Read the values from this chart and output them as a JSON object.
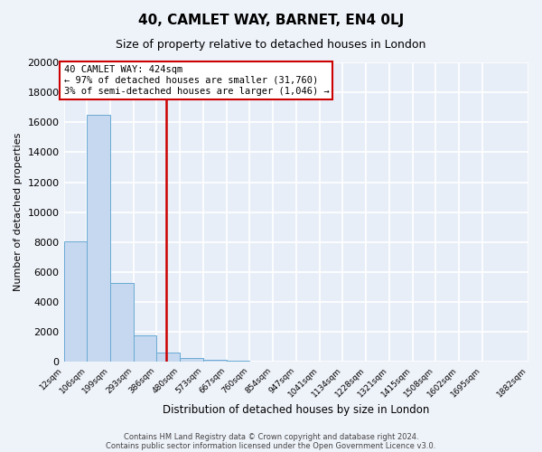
{
  "title": "40, CAMLET WAY, BARNET, EN4 0LJ",
  "subtitle": "Size of property relative to detached houses in London",
  "xlabel": "Distribution of detached houses by size in London",
  "ylabel": "Number of detached properties",
  "bar_values": [
    8050,
    16500,
    5250,
    1750,
    650,
    280,
    150,
    100,
    0,
    0,
    0,
    0,
    0,
    0,
    0,
    0,
    0,
    0,
    0
  ],
  "bin_edges": [
    12,
    106,
    199,
    293,
    386,
    480,
    573,
    667,
    760,
    854,
    947,
    1041,
    1134,
    1228,
    1321,
    1415,
    1508,
    1602,
    1695,
    1882
  ],
  "xtick_labels": [
    "12sqm",
    "106sqm",
    "199sqm",
    "293sqm",
    "386sqm",
    "480sqm",
    "573sqm",
    "667sqm",
    "760sqm",
    "854sqm",
    "947sqm",
    "1041sqm",
    "1134sqm",
    "1228sqm",
    "1321sqm",
    "1415sqm",
    "1508sqm",
    "1602sqm",
    "1695sqm",
    "1882sqm"
  ],
  "ylim": [
    0,
    20000
  ],
  "yticks": [
    0,
    2000,
    4000,
    6000,
    8000,
    10000,
    12000,
    14000,
    16000,
    18000,
    20000
  ],
  "bar_color": "#c5d8ef",
  "bar_edge_color": "#6aabd4",
  "vline_x": 424,
  "vline_color": "#cc0000",
  "annotation_title": "40 CAMLET WAY: 424sqm",
  "annotation_line1": "← 97% of detached houses are smaller (31,760)",
  "annotation_line2": "3% of semi-detached houses are larger (1,046) →",
  "annotation_box_edge": "#cc0000",
  "footer1": "Contains HM Land Registry data © Crown copyright and database right 2024.",
  "footer2": "Contains public sector information licensed under the Open Government Licence v3.0.",
  "background_color": "#eef2f9",
  "plot_bg_color": "#e8eef8",
  "grid_color": "#d0d8e8"
}
